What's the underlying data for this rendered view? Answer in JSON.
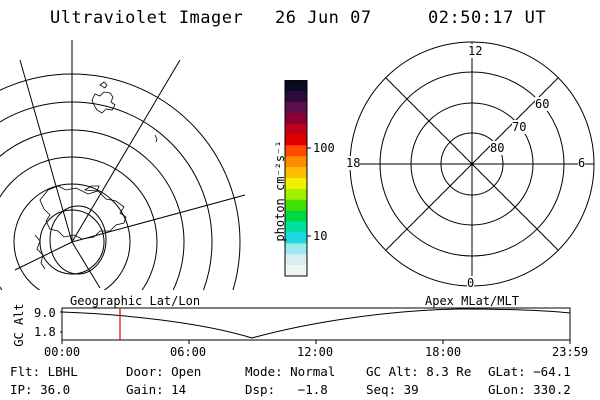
{
  "header": {
    "instrument": "Ultraviolet Imager",
    "date": "26 Jun 07",
    "time": "02:50:17 UT"
  },
  "colorbar": {
    "unit_label": "photon cm⁻²s⁻¹",
    "ticks": [
      "100",
      "10"
    ],
    "colors": [
      "#0b0b1e",
      "#2a0a3c",
      "#5a0f4a",
      "#8a0034",
      "#c00018",
      "#e00000",
      "#ff4a00",
      "#ff8c00",
      "#ffbf00",
      "#f0f000",
      "#a0f000",
      "#40e000",
      "#00d840",
      "#00e0a0",
      "#20d8e0",
      "#9ee8f0",
      "#d8eef2",
      "#eef6f6"
    ]
  },
  "polar": {
    "lat_labels": [
      "60",
      "70",
      "80"
    ],
    "mlt_labels": {
      "top": "12",
      "left": "18",
      "right": "6",
      "bottom": "0"
    }
  },
  "strip": {
    "left_label": "Geographic Lat/Lon",
    "right_label": "Apex MLat/MLT",
    "axis_title": "GC Alt",
    "y_ticks": [
      "9.0",
      "1.8"
    ],
    "x_ticks": [
      "00:00",
      "06:00",
      "12:00",
      "18:00",
      "23:59"
    ],
    "marker_color": "#e00000"
  },
  "status": {
    "filter": "Flt: LBHL",
    "door": "Door: Open",
    "mode": "Mode: Normal",
    "gc_alt": "GC Alt: 8.3 Re",
    "glat": "GLat: −64.1",
    "ip": "IP: 36.0",
    "gain": "Gain: 14",
    "dsp": "Dsp:   −1.8",
    "seq": "Seq: 39",
    "glon": "GLon: 330.2"
  }
}
